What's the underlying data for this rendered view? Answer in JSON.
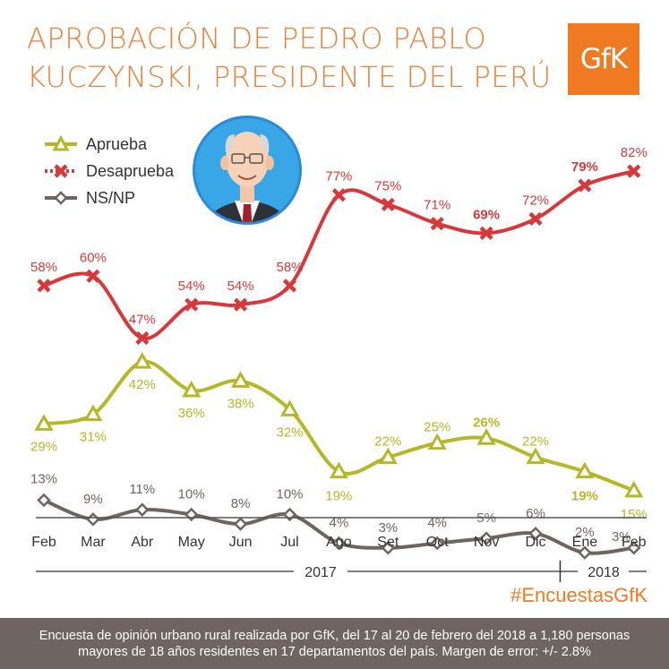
{
  "title": {
    "line1": "APROBACIÓN DE PEDRO PABLO",
    "line2": "KUCZYNSKI, PRESIDENTE DEL PERÚ"
  },
  "brand": {
    "logo_text": "GfK",
    "color": "#f07a22"
  },
  "hashtag": "#EncuestasGfK",
  "footer": {
    "line1": "Encuesta de opinión urbano rural realizada por GfK, del 17 al 20 de febrero del 2018 a 1,180 personas",
    "line2": "mayores de 18 años residentes en 17 departamentos del país. Margen de error: +/- 2.8%"
  },
  "chart_data": {
    "type": "line",
    "categories": [
      "Feb",
      "Mar",
      "Abr",
      "May",
      "Jun",
      "Jul",
      "Ago",
      "Set",
      "Oct",
      "Nov",
      "Dic",
      "Ene",
      "Feb"
    ],
    "years": [
      {
        "label": "2017",
        "from": 0,
        "to": 10
      },
      {
        "label": "2018",
        "from": 11,
        "to": 12
      }
    ],
    "series": [
      {
        "name": "Aprueba",
        "color": "#b5b726",
        "marker": "triangle",
        "values": [
          29,
          31,
          42,
          36,
          38,
          32,
          19,
          22,
          25,
          26,
          22,
          19,
          15
        ],
        "labels": [
          "29%",
          "31%",
          "42%",
          "36%",
          "38%",
          "32%",
          "19%",
          "22%",
          "25%",
          "26%",
          "22%",
          "19%",
          "15%"
        ],
        "bold": [
          9,
          11
        ]
      },
      {
        "name": "Desaprueba",
        "color": "#d9383a",
        "marker": "x",
        "values": [
          58,
          60,
          47,
          54,
          54,
          58,
          77,
          75,
          71,
          69,
          72,
          79,
          82
        ],
        "labels": [
          "58%",
          "60%",
          "47%",
          "54%",
          "54%",
          "58%",
          "77%",
          "75%",
          "71%",
          "69%",
          "72%",
          "79%",
          "82%"
        ],
        "bold": [
          9,
          11
        ]
      },
      {
        "name": "NS/NP",
        "color": "#6e6461",
        "marker": "diamond",
        "values": [
          13,
          9,
          11,
          10,
          8,
          10,
          4,
          3,
          4,
          5,
          6,
          2,
          3
        ],
        "labels": [
          "13%",
          "9%",
          "11%",
          "10%",
          "8%",
          "10%",
          "4%",
          "3%",
          "4%",
          "5%",
          "6%",
          "2%",
          "3%"
        ],
        "bold": []
      }
    ]
  }
}
